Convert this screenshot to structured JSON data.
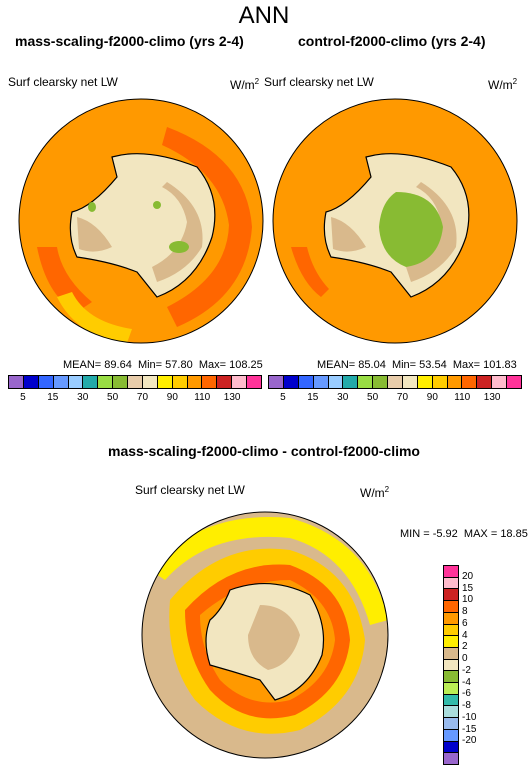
{
  "title": "ANN",
  "panels": [
    {
      "title": "mass-scaling-f2000-climo (yrs 2-4)",
      "variable": "Surf clearsky net LW",
      "units": "W/m",
      "units_exp": "2",
      "mean_label": "MEAN=",
      "mean": "89.64",
      "min_label": "Min=",
      "min": "57.80",
      "max_label": "Max=",
      "max": "108.25"
    },
    {
      "title": "control-f2000-climo (yrs 2-4)",
      "variable": "Surf clearsky net LW",
      "units": "W/m",
      "units_exp": "2",
      "mean_label": "MEAN=",
      "mean": "85.04",
      "min_label": "Min=",
      "min": "53.54",
      "max_label": "Max=",
      "max": "101.83"
    }
  ],
  "diff": {
    "title": "mass-scaling-f2000-climo - control-f2000-climo",
    "variable": "Surf clearsky net LW",
    "units": "W/m",
    "units_exp": "2",
    "min_label": "MIN =",
    "min": "-5.92",
    "max_label": "MAX =",
    "max": "18.85"
  },
  "colorbar_abs": {
    "colors": [
      "#9966cc",
      "#0000cc",
      "#3366ff",
      "#6699ff",
      "#99ccff",
      "#22aaaa",
      "#99dd44",
      "#88bb33",
      "#e8ccaa",
      "#f2e6c0",
      "#ffee00",
      "#ffcc00",
      "#ff9900",
      "#ff6600",
      "#cc2222",
      "#ffbbcc",
      "#ff3399"
    ],
    "labels": [
      "5",
      "15",
      "30",
      "50",
      "70",
      "90",
      "110",
      "130"
    ]
  },
  "colorbar_diff": {
    "colors": [
      "#ff3399",
      "#ffbbcc",
      "#cc2222",
      "#ff6600",
      "#ff9900",
      "#ffcc00",
      "#ffee00",
      "#d9b98c",
      "#f2e6c0",
      "#88bb33",
      "#bbee55",
      "#33bbaa",
      "#aadddd",
      "#99bbee",
      "#6699ff",
      "#0000cc",
      "#9966cc"
    ],
    "labels": [
      "20",
      "15",
      "10",
      "8",
      "6",
      "4",
      "2",
      "0",
      "-2",
      "-4",
      "-6",
      "-8",
      "-10",
      "-15",
      "-20"
    ]
  }
}
